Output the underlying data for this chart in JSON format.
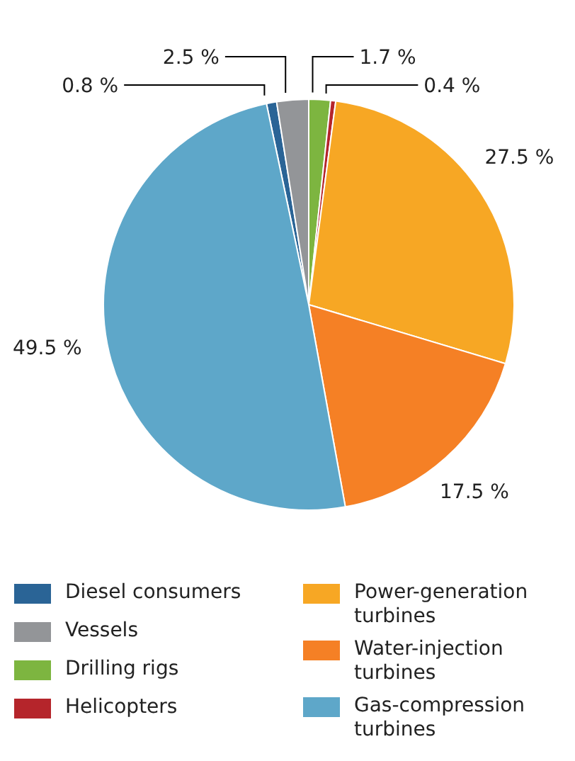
{
  "chart_data": {
    "type": "pie",
    "categories": [
      "Diesel consumers",
      "Vessels",
      "Drilling rigs",
      "Helicopters",
      "Power-generation turbines",
      "Water-injection turbines",
      "Gas-compression turbines"
    ],
    "values": [
      0.8,
      2.5,
      1.7,
      0.4,
      27.5,
      17.5,
      49.5
    ],
    "colors": [
      "#2a6496",
      "#939598",
      "#7db540",
      "#b5252b",
      "#f7a724",
      "#f58025",
      "#5ea7c9"
    ],
    "value_labels": [
      "0.8 %",
      "2.5 %",
      "1.7 %",
      "0.4 %",
      "27.5 %",
      "17.5 %",
      "49.5 %"
    ],
    "legend": "bottom"
  }
}
